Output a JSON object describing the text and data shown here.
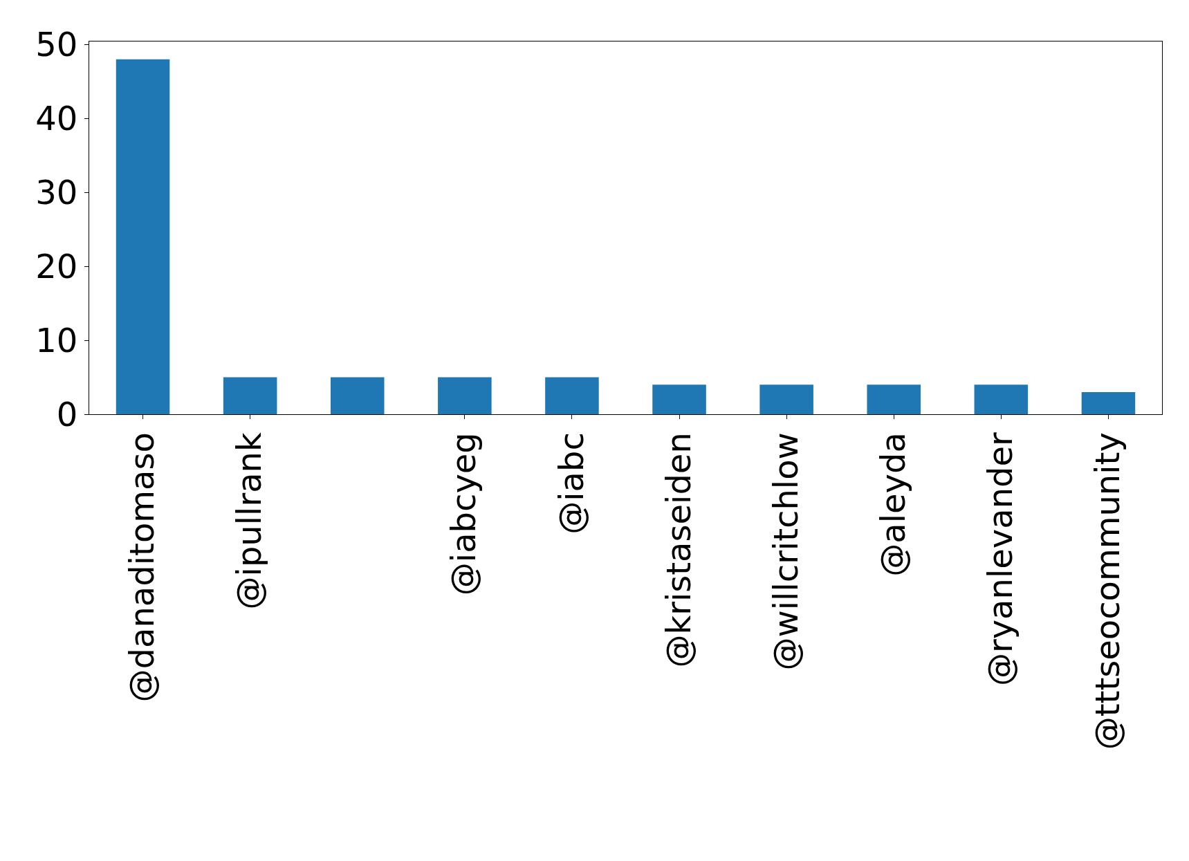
{
  "chart_data": {
    "type": "bar",
    "categories": [
      "@danaditomaso",
      "@ipullrank",
      null,
      "@iabcyeg",
      "@iabc",
      "@kristaseiden",
      "@willcritchlow",
      "@aleyda",
      "@ryanlevander",
      "@tttseocommunity"
    ],
    "values": [
      48,
      5,
      5,
      5,
      5,
      4,
      4,
      4,
      4,
      3
    ],
    "color": "#1f77b4",
    "ylim": [
      0,
      50.4
    ],
    "yticks": [
      0,
      10,
      20,
      30,
      40,
      50
    ]
  }
}
